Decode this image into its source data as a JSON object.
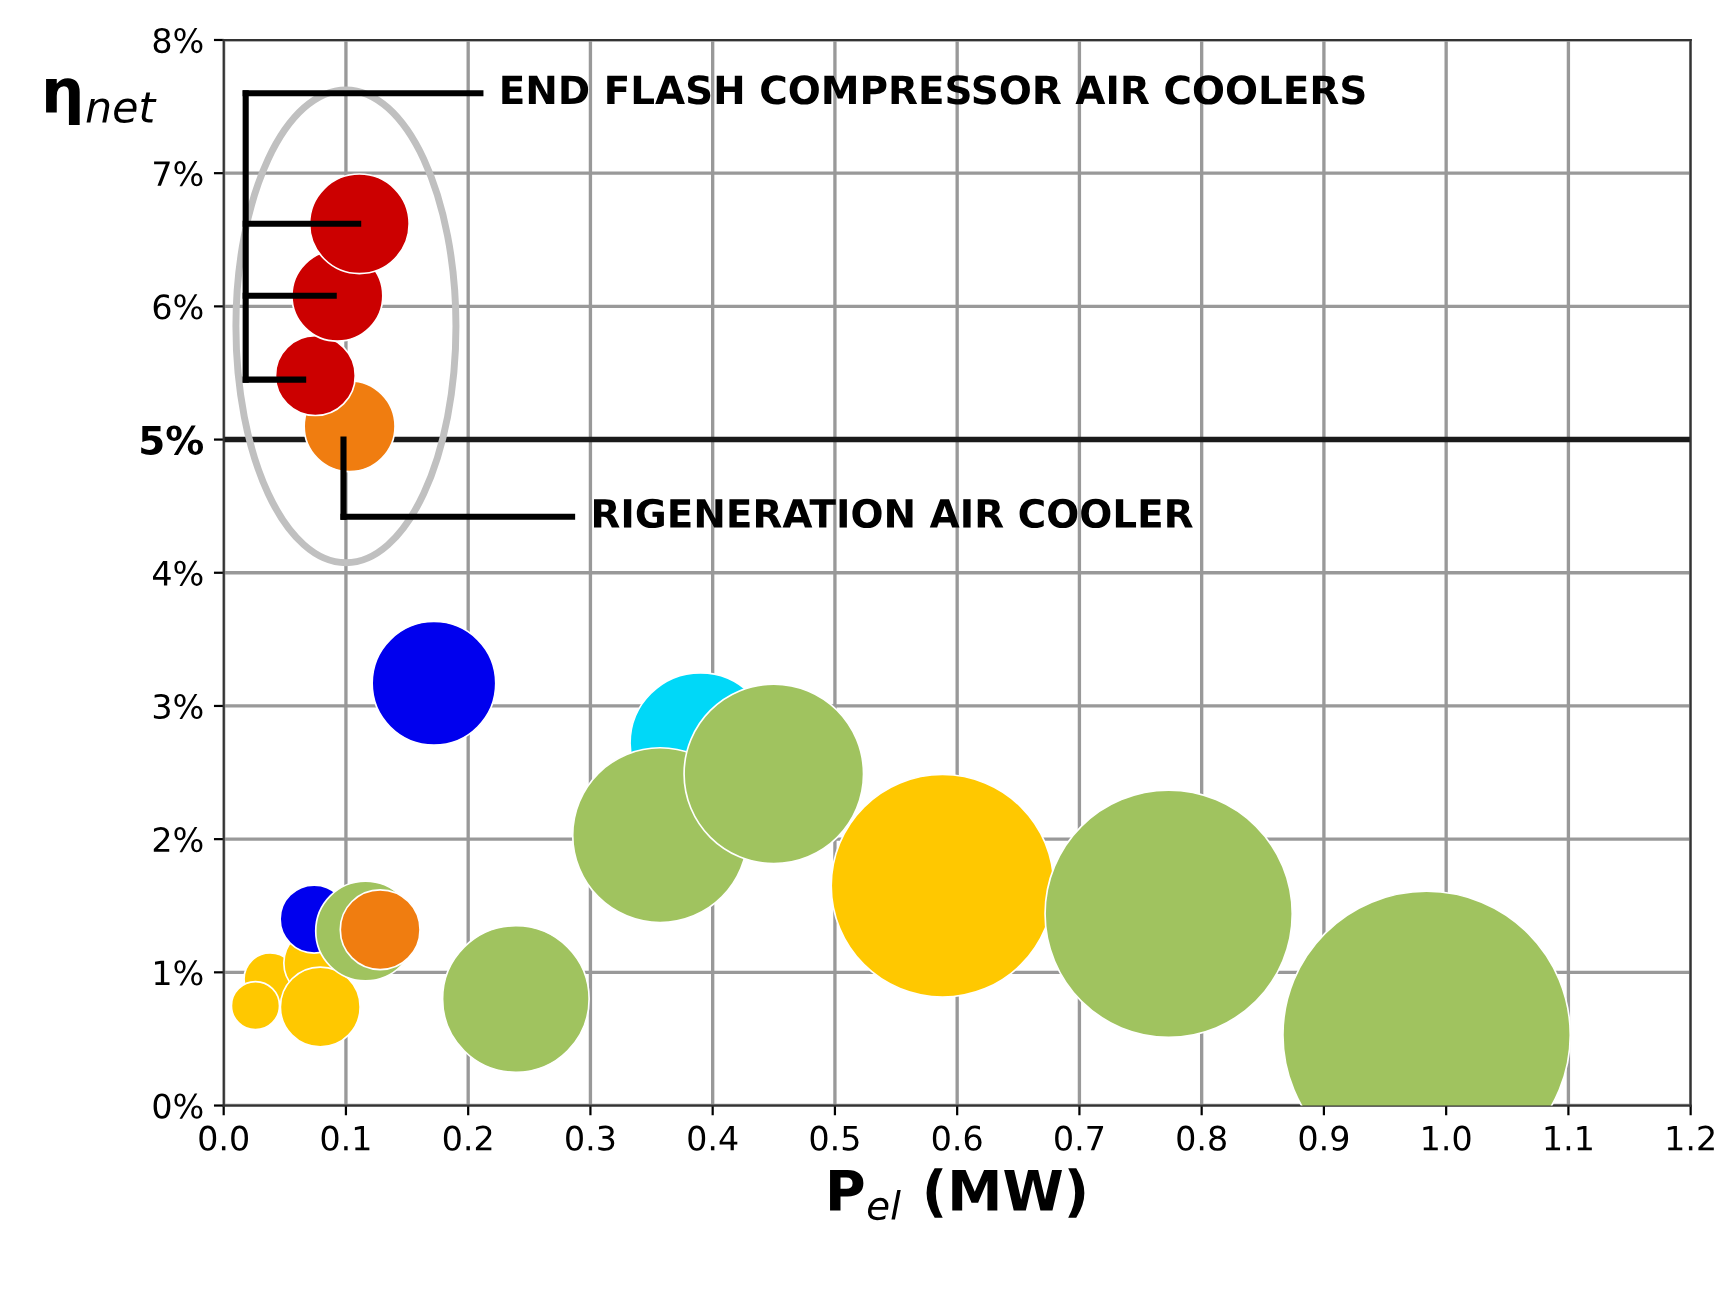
{
  "chart_data": {
    "type": "bubble",
    "xlabel": "P$_{el}$ (MW)",
    "ylabel": "η$_{net}$",
    "annotations": [
      "END FLASH COMPRESSOR AIR COOLERS",
      "RIGENERATION AIR COOLER"
    ],
    "series": [
      {
        "color": "#ffc800",
        "x": [
          0.038,
          0.026,
          0.077,
          0.079,
          0.588
        ],
        "values": [
          0.95,
          0.75,
          1.07,
          0.74,
          1.65
        ],
        "sizes": [
          0.033,
          0.028,
          0.056,
          0.077,
          0.6
        ]
      },
      {
        "color": "#0000ee",
        "x": [
          0.172,
          0.074
        ],
        "values": [
          3.17,
          1.4
        ],
        "sizes": [
          0.185,
          0.056
        ]
      },
      {
        "color": "#00d8f8",
        "x": [
          0.39
        ],
        "values": [
          2.72
        ],
        "sizes": [
          0.24
        ]
      },
      {
        "color": "#a0c35f",
        "x": [
          0.116,
          0.239,
          0.357,
          0.45,
          0.773,
          0.984
        ],
        "values": [
          1.31,
          0.8,
          2.03,
          2.49,
          1.44,
          0.53
        ],
        "sizes": [
          0.12,
          0.26,
          0.37,
          0.39,
          0.74,
          1.0
        ]
      },
      {
        "color": "#f07d10",
        "x": [
          0.103,
          0.128
        ],
        "values": [
          5.1,
          1.32
        ],
        "sizes": [
          0.1,
          0.077
        ]
      },
      {
        "color": "#cc0000",
        "x": [
          0.075,
          0.093,
          0.111
        ],
        "values": [
          5.48,
          6.08,
          6.62
        ],
        "sizes": [
          0.077,
          0.1,
          0.12
        ]
      }
    ],
    "xlim": [
      0,
      1.2
    ],
    "ylim": [
      0,
      8
    ],
    "xticks": [
      {
        "value": 0,
        "label": "0.0"
      },
      0.1,
      0.2,
      0.3,
      0.4,
      0.5,
      0.6,
      0.7,
      0.8,
      0.9,
      {
        "value": 1,
        "label": "1.0"
      },
      1.1,
      1.2
    ],
    "yticks": [
      {
        "value": 0,
        "label": "0%"
      },
      {
        "value": 1,
        "label": "1%"
      },
      {
        "value": 2,
        "label": "2%"
      },
      {
        "value": 3,
        "label": "3%"
      },
      {
        "value": 4,
        "label": "4%"
      },
      {
        "value": 5,
        "label": "5%"
      },
      {
        "value": 6,
        "label": "6%"
      },
      {
        "value": 7,
        "label": "7%"
      },
      {
        "value": 8,
        "label": "8%"
      }
    ],
    "ref_lines": [
      {
        "axis": "y",
        "value": 5,
        "color": "#1a1a1a"
      }
    ],
    "grid": true,
    "legend": false
  }
}
